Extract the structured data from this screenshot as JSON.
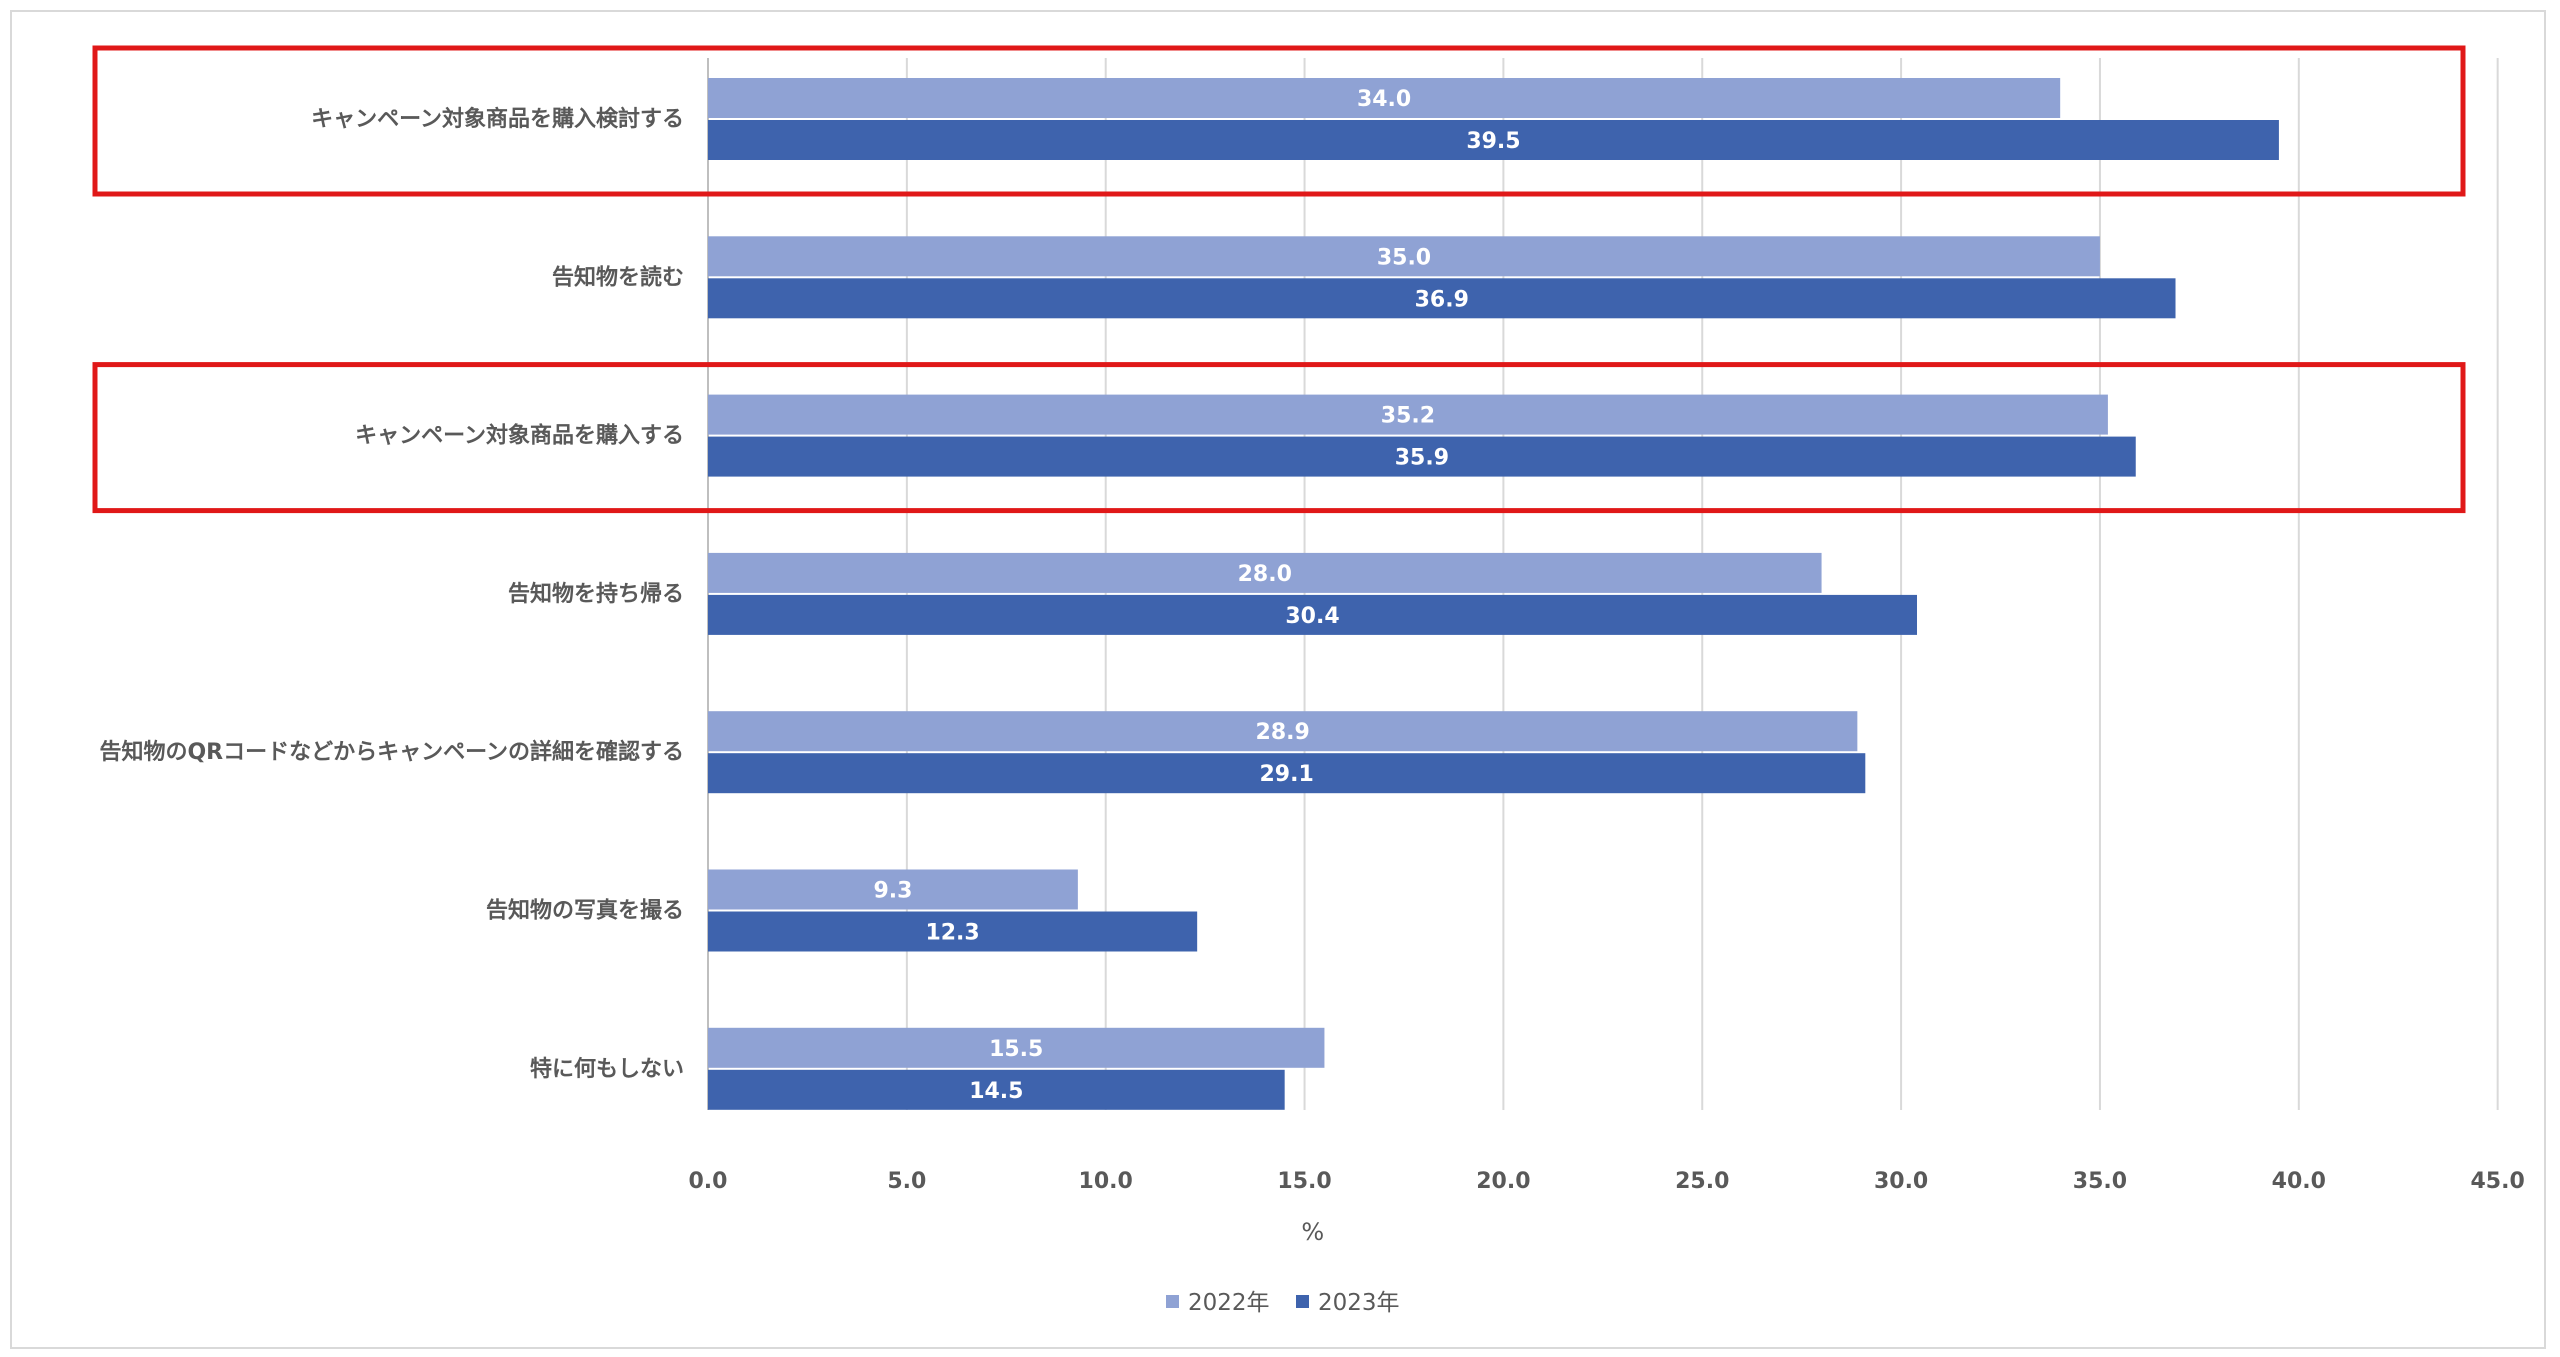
{
  "chart_data": {
    "type": "bar",
    "orientation": "horizontal",
    "categories": [
      "キャンペーン対象商品を購入検討する",
      "告知物を読む",
      "キャンペーン対象商品を購入する",
      "告知物を持ち帰る",
      "告知物のQRコードなどからキャンペーンの詳細を確認する",
      "告知物の写真を撮る",
      "特に何もしない"
    ],
    "series": [
      {
        "name": "2022年",
        "color": "#8fa2d4",
        "values": [
          34.0,
          35.0,
          35.2,
          28.0,
          28.9,
          9.3,
          15.5
        ],
        "labels": [
          "34.0",
          "35.0",
          "35.2",
          "28.0",
          "28.9",
          "9.3",
          "15.5"
        ]
      },
      {
        "name": "2023年",
        "color": "#3e63ad",
        "values": [
          39.5,
          36.9,
          35.9,
          30.4,
          29.1,
          12.3,
          14.5
        ],
        "labels": [
          "39.5",
          "36.9",
          "35.9",
          "30.4",
          "29.1",
          "12.3",
          "14.5"
        ]
      }
    ],
    "xlim": [
      0,
      45
    ],
    "xticks": [
      "0.0",
      "5.0",
      "10.0",
      "15.0",
      "20.0",
      "25.0",
      "30.0",
      "35.0",
      "40.0",
      "45.0"
    ],
    "xlabel": "%",
    "gridlines": true,
    "legend_position": "bottom",
    "highlighted_categories": [
      0,
      2
    ],
    "highlight_color": "#e01818"
  }
}
